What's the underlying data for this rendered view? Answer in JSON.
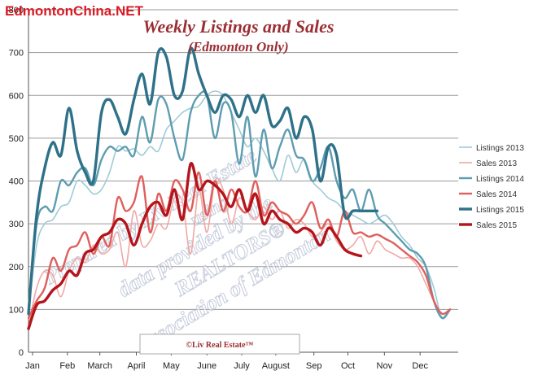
{
  "brand": "EdmontonChina.NET",
  "credit": "©Liv Real Estate™",
  "watermark": {
    "line1": "Prepared by Liv Real Estate",
    "line2": "using",
    "line3": "data provided by the",
    "line4": "REALTORS®",
    "line5": "Association of Edmonton"
  },
  "colors": {
    "Listings 2013": "#9fcbd6",
    "Sales 2013": "#f0a9a6",
    "Listings 2014": "#5d9db0",
    "Sales 2014": "#df5f5c",
    "Listings 2015": "#2e7189",
    "Sales 2015": "#b4141b"
  },
  "chart_data": {
    "type": "line",
    "title": "Weekly Listings and Sales",
    "subtitle": "(Edmonton Only)",
    "xlabel": "",
    "ylabel": "",
    "ylim": [
      0,
      800
    ],
    "yticks": [
      0,
      100,
      200,
      300,
      400,
      500,
      600,
      700,
      800
    ],
    "xlim": [
      0,
      53
    ],
    "month_ticks": [
      {
        "label": "Jan",
        "week": 0.5
      },
      {
        "label": "Feb",
        "week": 4.8
      },
      {
        "label": "March",
        "week": 8.8
      },
      {
        "label": "April",
        "week": 13.3
      },
      {
        "label": "May",
        "week": 17.6
      },
      {
        "label": "June",
        "week": 22.0
      },
      {
        "label": "July",
        "week": 26.3
      },
      {
        "label": "August",
        "week": 30.5
      },
      {
        "label": "Sep",
        "week": 35.2
      },
      {
        "label": "Oct",
        "week": 39.4
      },
      {
        "label": "Nov",
        "week": 43.9
      },
      {
        "label": "Dec",
        "week": 48.3
      }
    ],
    "grid": true,
    "legend": "right",
    "series": [
      {
        "name": "Listings 2013",
        "x": [
          0,
          1,
          2,
          3,
          4,
          5,
          6,
          7,
          8,
          9,
          10,
          11,
          12,
          13,
          14,
          15,
          16,
          17,
          18,
          19,
          20,
          21,
          22,
          23,
          24,
          25,
          26,
          27,
          28,
          29,
          30,
          31,
          32,
          33,
          34,
          35,
          36,
          37,
          38,
          39,
          40,
          41,
          42,
          43,
          44,
          45,
          46,
          47,
          48,
          49,
          50,
          51,
          52
        ],
        "values": [
          90,
          250,
          300,
          310,
          340,
          350,
          400,
          390,
          370,
          380,
          420,
          480,
          470,
          475,
          460,
          480,
          470,
          520,
          540,
          560,
          570,
          575,
          600,
          610,
          600,
          560,
          520,
          480,
          500,
          470,
          430,
          400,
          460,
          420,
          450,
          400,
          380,
          360,
          350,
          330,
          320,
          310,
          300,
          310,
          320,
          300,
          270,
          250,
          220,
          200,
          150,
          80,
          100
        ]
      },
      {
        "name": "Sales 2013",
        "x": [
          0,
          1,
          2,
          3,
          4,
          5,
          6,
          7,
          8,
          9,
          10,
          11,
          12,
          13,
          14,
          15,
          16,
          17,
          18,
          19,
          20,
          21,
          22,
          23,
          24,
          25,
          26,
          27,
          28,
          29,
          30,
          31,
          32,
          33,
          34,
          35,
          36,
          37,
          38,
          39,
          40,
          41,
          42,
          43,
          44,
          45,
          46,
          47,
          48,
          49,
          50,
          51,
          52
        ],
        "values": [
          60,
          150,
          190,
          180,
          130,
          190,
          220,
          210,
          250,
          230,
          240,
          280,
          200,
          330,
          250,
          260,
          300,
          290,
          360,
          350,
          230,
          380,
          280,
          400,
          380,
          300,
          360,
          330,
          310,
          340,
          310,
          330,
          290,
          310,
          300,
          270,
          280,
          300,
          260,
          240,
          250,
          270,
          230,
          260,
          240,
          230,
          220,
          220,
          200,
          160,
          120,
          90,
          100
        ]
      },
      {
        "name": "Listings 2014",
        "x": [
          0,
          1,
          2,
          3,
          4,
          5,
          6,
          7,
          8,
          9,
          10,
          11,
          12,
          13,
          14,
          15,
          16,
          17,
          18,
          19,
          20,
          21,
          22,
          23,
          24,
          25,
          26,
          27,
          28,
          29,
          30,
          31,
          32,
          33,
          34,
          35,
          36,
          37,
          38,
          39,
          40,
          41,
          42,
          43,
          44,
          45,
          46,
          47,
          48,
          49,
          50,
          51,
          52
        ],
        "values": [
          100,
          300,
          340,
          330,
          400,
          390,
          420,
          430,
          390,
          450,
          480,
          470,
          480,
          460,
          550,
          490,
          590,
          580,
          500,
          450,
          560,
          600,
          600,
          500,
          580,
          560,
          440,
          550,
          410,
          520,
          430,
          480,
          520,
          460,
          450,
          400,
          430,
          480,
          400,
          360,
          380,
          330,
          380,
          320,
          300,
          280,
          260,
          240,
          230,
          200,
          120,
          80,
          100
        ]
      },
      {
        "name": "Sales 2014",
        "x": [
          0,
          1,
          2,
          3,
          4,
          5,
          6,
          7,
          8,
          9,
          10,
          11,
          12,
          13,
          14,
          15,
          16,
          17,
          18,
          19,
          20,
          21,
          22,
          23,
          24,
          25,
          26,
          27,
          28,
          29,
          30,
          31,
          32,
          33,
          34,
          35,
          36,
          37,
          38,
          39,
          40,
          41,
          42,
          43,
          44,
          45,
          46,
          47,
          48,
          49,
          50,
          51,
          52
        ],
        "values": [
          80,
          120,
          150,
          220,
          190,
          240,
          250,
          280,
          230,
          270,
          250,
          360,
          330,
          350,
          410,
          280,
          370,
          330,
          400,
          380,
          330,
          420,
          320,
          400,
          330,
          380,
          340,
          330,
          400,
          320,
          350,
          330,
          320,
          300,
          320,
          350,
          290,
          310,
          270,
          330,
          280,
          280,
          270,
          275,
          265,
          255,
          240,
          225,
          210,
          180,
          120,
          90,
          100
        ]
      },
      {
        "name": "Listings 2015",
        "x": [
          0,
          1,
          2,
          3,
          4,
          5,
          6,
          7,
          8,
          9,
          10,
          11,
          12,
          13,
          14,
          15,
          16,
          17,
          18,
          19,
          20,
          21,
          22,
          23,
          24,
          25,
          26,
          27,
          28,
          29,
          30,
          31,
          32,
          33,
          34,
          35,
          36,
          37,
          38,
          39,
          40,
          41,
          42,
          43
        ],
        "values": [
          90,
          320,
          430,
          490,
          460,
          570,
          470,
          420,
          400,
          560,
          590,
          550,
          510,
          590,
          650,
          580,
          700,
          690,
          600,
          610,
          710,
          650,
          600,
          560,
          600,
          590,
          550,
          600,
          560,
          600,
          530,
          540,
          570,
          500,
          550,
          520,
          400,
          480,
          460,
          320,
          330,
          330,
          330,
          330
        ]
      },
      {
        "name": "Sales 2015",
        "x": [
          0,
          1,
          2,
          3,
          4,
          5,
          6,
          7,
          8,
          9,
          10,
          11,
          12,
          13,
          14,
          15,
          16,
          17,
          18,
          19,
          20,
          21,
          22,
          23,
          24,
          25,
          26,
          27,
          28,
          29,
          30,
          31,
          32,
          33,
          34,
          35,
          36,
          37,
          38,
          39,
          40,
          41
        ],
        "values": [
          55,
          110,
          120,
          145,
          160,
          190,
          180,
          230,
          240,
          270,
          280,
          310,
          300,
          250,
          300,
          340,
          350,
          320,
          380,
          310,
          440,
          380,
          400,
          390,
          370,
          340,
          380,
          330,
          370,
          300,
          330,
          310,
          300,
          280,
          290,
          280,
          250,
          290,
          270,
          240,
          230,
          225
        ]
      }
    ]
  }
}
